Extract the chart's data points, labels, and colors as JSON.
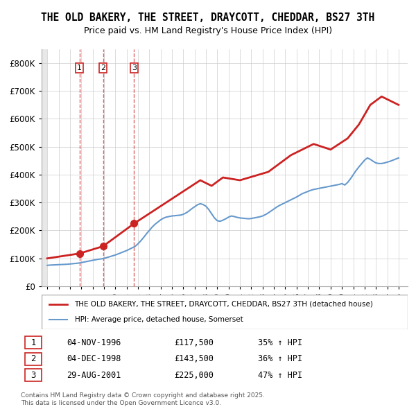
{
  "title": "THE OLD BAKERY, THE STREET, DRAYCOTT, CHEDDAR, BS27 3TH",
  "subtitle": "Price paid vs. HM Land Registry's House Price Index (HPI)",
  "legend_line1": "THE OLD BAKERY, THE STREET, DRAYCOTT, CHEDDAR, BS27 3TH (detached house)",
  "legend_line2": "HPI: Average price, detached house, Somerset",
  "footer": "Contains HM Land Registry data © Crown copyright and database right 2025.\nThis data is licensed under the Open Government Licence v3.0.",
  "transactions": [
    {
      "num": 1,
      "date": "04-NOV-1996",
      "price": 117500,
      "pct": "35%",
      "dir": "↑",
      "x": 1996.84
    },
    {
      "num": 2,
      "date": "04-DEC-1998",
      "price": 143500,
      "pct": "36%",
      "dir": "↑",
      "x": 1998.92
    },
    {
      "num": 3,
      "date": "29-AUG-2001",
      "price": 225000,
      "pct": "47%",
      "dir": "↑",
      "x": 2001.66
    }
  ],
  "hpi_color": "#6699cc",
  "price_color": "#cc2222",
  "hatch_color": "#cccccc",
  "ylim": [
    0,
    850000
  ],
  "yticks": [
    0,
    100000,
    200000,
    300000,
    400000,
    500000,
    600000,
    700000,
    800000
  ],
  "ytick_labels": [
    "£0",
    "£100K",
    "£200K",
    "£300K",
    "£400K",
    "£500K",
    "£600K",
    "£700K",
    "£800K"
  ],
  "xlim": [
    1993.5,
    2025.8
  ],
  "hpi_data": {
    "x": [
      1994.0,
      1994.25,
      1994.5,
      1994.75,
      1995.0,
      1995.25,
      1995.5,
      1995.75,
      1996.0,
      1996.25,
      1996.5,
      1996.75,
      1997.0,
      1997.25,
      1997.5,
      1997.75,
      1998.0,
      1998.25,
      1998.5,
      1998.75,
      1999.0,
      1999.25,
      1999.5,
      1999.75,
      2000.0,
      2000.25,
      2000.5,
      2000.75,
      2001.0,
      2001.25,
      2001.5,
      2001.75,
      2002.0,
      2002.25,
      2002.5,
      2002.75,
      2003.0,
      2003.25,
      2003.5,
      2003.75,
      2004.0,
      2004.25,
      2004.5,
      2004.75,
      2005.0,
      2005.25,
      2005.5,
      2005.75,
      2006.0,
      2006.25,
      2006.5,
      2006.75,
      2007.0,
      2007.25,
      2007.5,
      2007.75,
      2008.0,
      2008.25,
      2008.5,
      2008.75,
      2009.0,
      2009.25,
      2009.5,
      2009.75,
      2010.0,
      2010.25,
      2010.5,
      2010.75,
      2011.0,
      2011.25,
      2011.5,
      2011.75,
      2012.0,
      2012.25,
      2012.5,
      2012.75,
      2013.0,
      2013.25,
      2013.5,
      2013.75,
      2014.0,
      2014.25,
      2014.5,
      2014.75,
      2015.0,
      2015.25,
      2015.5,
      2015.75,
      2016.0,
      2016.25,
      2016.5,
      2016.75,
      2017.0,
      2017.25,
      2017.5,
      2017.75,
      2018.0,
      2018.25,
      2018.5,
      2018.75,
      2019.0,
      2019.25,
      2019.5,
      2019.75,
      2020.0,
      2020.25,
      2020.5,
      2020.75,
      2021.0,
      2021.25,
      2021.5,
      2021.75,
      2022.0,
      2022.25,
      2022.5,
      2022.75,
      2023.0,
      2023.25,
      2023.5,
      2023.75,
      2024.0,
      2024.25,
      2024.5,
      2024.75,
      2025.0
    ],
    "y": [
      75000,
      76000,
      76500,
      77000,
      77500,
      78000,
      78500,
      79000,
      80000,
      81000,
      82000,
      83000,
      85000,
      87000,
      89000,
      91000,
      93000,
      95000,
      97000,
      98000,
      100000,
      103000,
      106000,
      109000,
      112000,
      116000,
      120000,
      124000,
      128000,
      133000,
      138000,
      143000,
      152000,
      163000,
      175000,
      188000,
      200000,
      212000,
      222000,
      230000,
      238000,
      244000,
      248000,
      250000,
      252000,
      253000,
      254000,
      255000,
      258000,
      263000,
      270000,
      278000,
      285000,
      292000,
      296000,
      293000,
      287000,
      275000,
      260000,
      245000,
      235000,
      233000,
      237000,
      242000,
      248000,
      252000,
      250000,
      247000,
      245000,
      244000,
      243000,
      242000,
      243000,
      245000,
      247000,
      249000,
      252000,
      257000,
      263000,
      270000,
      277000,
      284000,
      290000,
      295000,
      300000,
      305000,
      310000,
      315000,
      320000,
      326000,
      332000,
      336000,
      340000,
      344000,
      347000,
      349000,
      351000,
      353000,
      355000,
      357000,
      359000,
      361000,
      363000,
      365000,
      368000,
      363000,
      372000,
      385000,
      400000,
      415000,
      428000,
      440000,
      452000,
      460000,
      455000,
      448000,
      442000,
      440000,
      440000,
      442000,
      445000,
      448000,
      452000,
      456000,
      460000
    ]
  },
  "price_data": {
    "x": [
      1994.0,
      1996.84,
      1998.92,
      2001.66,
      2007.5,
      2008.5,
      2009.5,
      2011.0,
      2013.5,
      2015.5,
      2017.5,
      2019.0,
      2020.5,
      2021.5,
      2022.5,
      2023.5,
      2024.5,
      2025.0
    ],
    "y": [
      100000,
      117500,
      143500,
      225000,
      380000,
      360000,
      390000,
      380000,
      410000,
      470000,
      510000,
      490000,
      530000,
      580000,
      650000,
      680000,
      660000,
      650000
    ]
  }
}
